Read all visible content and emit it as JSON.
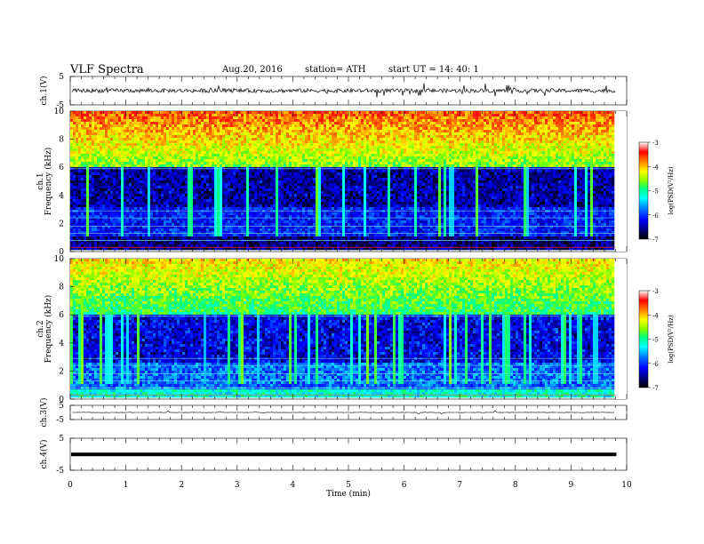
{
  "header": {
    "title": "VLF  Spectra",
    "date": "Aug.20, 2016",
    "station": "station= ATH",
    "start": "start  UT  =   14: 40: 1"
  },
  "colors": {
    "spectrogram_scale": [
      "#000000",
      "#000080",
      "#0000ff",
      "#0080ff",
      "#00ffff",
      "#00ff80",
      "#80ff00",
      "#ffff00",
      "#ff8000",
      "#ff0000",
      "#ffffff"
    ],
    "trace": "#000000",
    "axis": "#000000"
  },
  "chart_data": [
    {
      "type": "line",
      "panel": "ch1-waveform",
      "ylabel": "ch.1(V)",
      "ylim": [
        -5,
        5
      ],
      "yticks": [
        "5",
        "-5"
      ],
      "xlim": [
        0,
        10
      ],
      "description_values": "noisy waveform centred near 0 V, amplitude about ±1 V with spikes up to ±3 V"
    },
    {
      "type": "heatmap",
      "panel": "ch1-spectrogram",
      "ylabel": "ch.1\nFrequency  (kHz)",
      "ylim": [
        0,
        10
      ],
      "yticks": [
        "0",
        "2",
        "4",
        "6",
        "8",
        "10"
      ],
      "xlim": [
        0,
        9.8
      ],
      "colorbar": {
        "label": "log(PSD(V²/Hz)",
        "range": [
          -7,
          -3
        ],
        "ticks": [
          "-3",
          "-4",
          "-5",
          "-6",
          "-7"
        ]
      }
    },
    {
      "type": "heatmap",
      "panel": "ch2-spectrogram",
      "ylabel": "ch.2\nFrequency  (kHz)",
      "ylim": [
        0,
        10
      ],
      "yticks": [
        "0",
        "2",
        "4",
        "6",
        "8",
        "10"
      ],
      "xlim": [
        0,
        9.8
      ],
      "colorbar": {
        "label": "log(PSD(V²/Hz)",
        "range": [
          -7,
          -3
        ],
        "ticks": [
          "-3",
          "-4",
          "-5",
          "-6",
          "-7"
        ]
      }
    },
    {
      "type": "line",
      "panel": "ch3-waveform",
      "ylabel": "ch.3(V)",
      "ylim": [
        -5,
        5
      ],
      "yticks": [
        "5",
        "-5"
      ],
      "xlim": [
        0,
        10
      ],
      "description_values": "flat at about 0 V with a few small spikes"
    },
    {
      "type": "line",
      "panel": "ch4-waveform",
      "ylabel": "ch.4(V)",
      "ylim": [
        -5,
        5
      ],
      "yticks": [
        "5",
        "-5"
      ],
      "xlim": [
        0,
        10
      ],
      "description_values": "thick constant band at about 0 V"
    }
  ],
  "x_axis": {
    "label": "Time  (min)",
    "ticks": [
      "0",
      "1",
      "2",
      "3",
      "4",
      "5",
      "6",
      "7",
      "8",
      "9",
      "10"
    ],
    "range": [
      0,
      10
    ]
  }
}
